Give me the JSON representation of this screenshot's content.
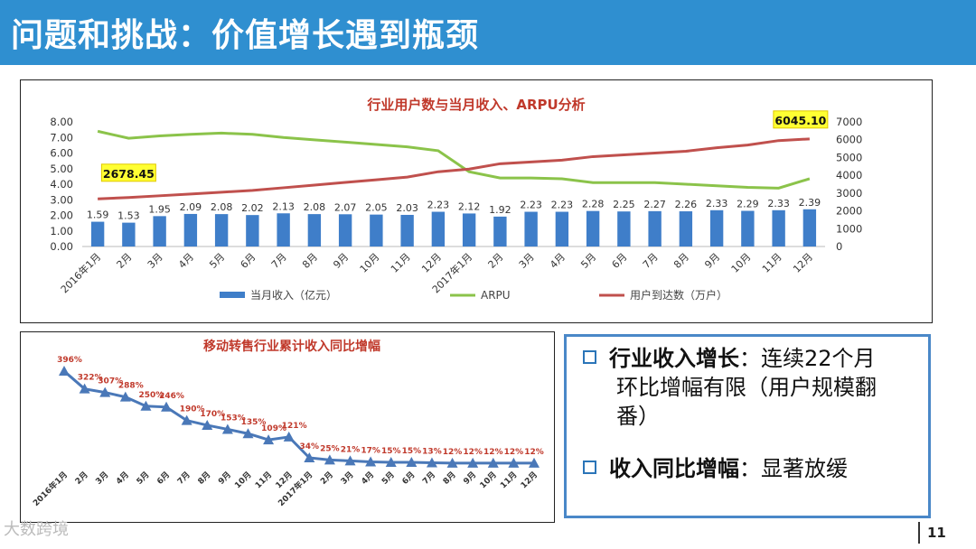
{
  "page": {
    "title": "问题和挑战：价值增长遇到瓶颈",
    "page_number": "11",
    "source_logo": "大数跨境"
  },
  "chart_data": [
    {
      "type": "bar-line",
      "title": "行业用户数与当月收入、ARPU分析",
      "categories": [
        "2016年1月",
        "2月",
        "3月",
        "4月",
        "5月",
        "6月",
        "7月",
        "8月",
        "9月",
        "10月",
        "11月",
        "12月",
        "2017年1月",
        "2月",
        "3月",
        "4月",
        "5月",
        "6月",
        "7月",
        "8月",
        "9月",
        "10月",
        "11月",
        "12月"
      ],
      "y_left": {
        "ticks": [
          "0.00",
          "1.00",
          "2.00",
          "3.00",
          "4.00",
          "5.00",
          "6.00",
          "7.00",
          "8.00"
        ],
        "ylim": [
          0,
          8
        ]
      },
      "y_right": {
        "ticks": [
          "0",
          "1000",
          "2000",
          "3000",
          "4000",
          "5000",
          "6000",
          "7000"
        ],
        "ylim": [
          0,
          7000
        ]
      },
      "series": [
        {
          "name": "当月收入（亿元）",
          "type": "bar",
          "axis": "left",
          "color": "#3f7ec9",
          "values": [
            1.59,
            1.53,
            1.95,
            2.09,
            2.08,
            2.02,
            2.13,
            2.08,
            2.07,
            2.05,
            2.03,
            2.23,
            2.12,
            1.92,
            2.23,
            2.23,
            2.28,
            2.25,
            2.27,
            2.26,
            2.33,
            2.29,
            2.33,
            2.39
          ],
          "labels": [
            "1.59",
            "1.53",
            "1.95",
            "2.09",
            "2.08",
            "2.02",
            "2.13",
            "2.08",
            "2.07",
            "2.05",
            "2.03",
            "2.23",
            "2.12",
            "1.92",
            "2.23",
            "2.23",
            "2.28",
            "2.25",
            "2.27",
            "2.26",
            "2.33",
            "2.29",
            "2.33",
            "2.39"
          ]
        },
        {
          "name": "ARPU",
          "type": "line",
          "axis": "left",
          "color": "#8bc34a",
          "values": [
            7.4,
            6.95,
            7.1,
            7.2,
            7.28,
            7.2,
            7.0,
            6.85,
            6.7,
            6.55,
            6.4,
            6.15,
            4.8,
            4.4,
            4.4,
            4.35,
            4.1,
            4.1,
            4.1,
            4.0,
            3.9,
            3.8,
            3.75,
            4.35
          ]
        },
        {
          "name": "用户到达数（万户）",
          "type": "line",
          "axis": "right",
          "color": "#c0504d",
          "values": [
            2678.45,
            2750,
            2850,
            2950,
            3050,
            3150,
            3300,
            3450,
            3600,
            3750,
            3900,
            4200,
            4350,
            4650,
            4750,
            4850,
            5050,
            5150,
            5250,
            5350,
            5550,
            5700,
            5950,
            6045.1
          ]
        }
      ],
      "callouts": [
        "2678.45",
        "6045.10"
      ]
    },
    {
      "type": "line",
      "title": "移动转售行业累计收入同比增幅",
      "categories": [
        "2016年1月",
        "2月",
        "3月",
        "4月",
        "5月",
        "6月",
        "7月",
        "8月",
        "9月",
        "10月",
        "11月",
        "12月",
        "2017年1月",
        "2月",
        "3月",
        "4月",
        "5月",
        "6月",
        "7月",
        "8月",
        "9月",
        "10月",
        "11月",
        "12月"
      ],
      "series": [
        {
          "name": "累计收入同比增幅",
          "color": "#4a78b8",
          "values": [
            396,
            322,
            307,
            288,
            250,
            246,
            190,
            170,
            153,
            135,
            109,
            121,
            34,
            25,
            21,
            17,
            15,
            15,
            13,
            12,
            12,
            12,
            12,
            12
          ],
          "labels": [
            "396%",
            "322%",
            "307%",
            "288%",
            "250%",
            "246%",
            "190%",
            "170%",
            "153%",
            "135%",
            "109%",
            "121%",
            "34%",
            "25%",
            "21%",
            "17%",
            "15%",
            "15%",
            "13%",
            "12%",
            "12%",
            "12%",
            "12%",
            "12%"
          ]
        }
      ],
      "ylim": [
        0,
        400
      ]
    }
  ],
  "bullets": [
    {
      "keyword": "行业收入增长",
      "text": "：连续22个月",
      "line2": "环比增幅有限（用户规模翻",
      "line3": "番）"
    },
    {
      "keyword": "收入同比增幅",
      "text": "：显著放缓"
    }
  ]
}
